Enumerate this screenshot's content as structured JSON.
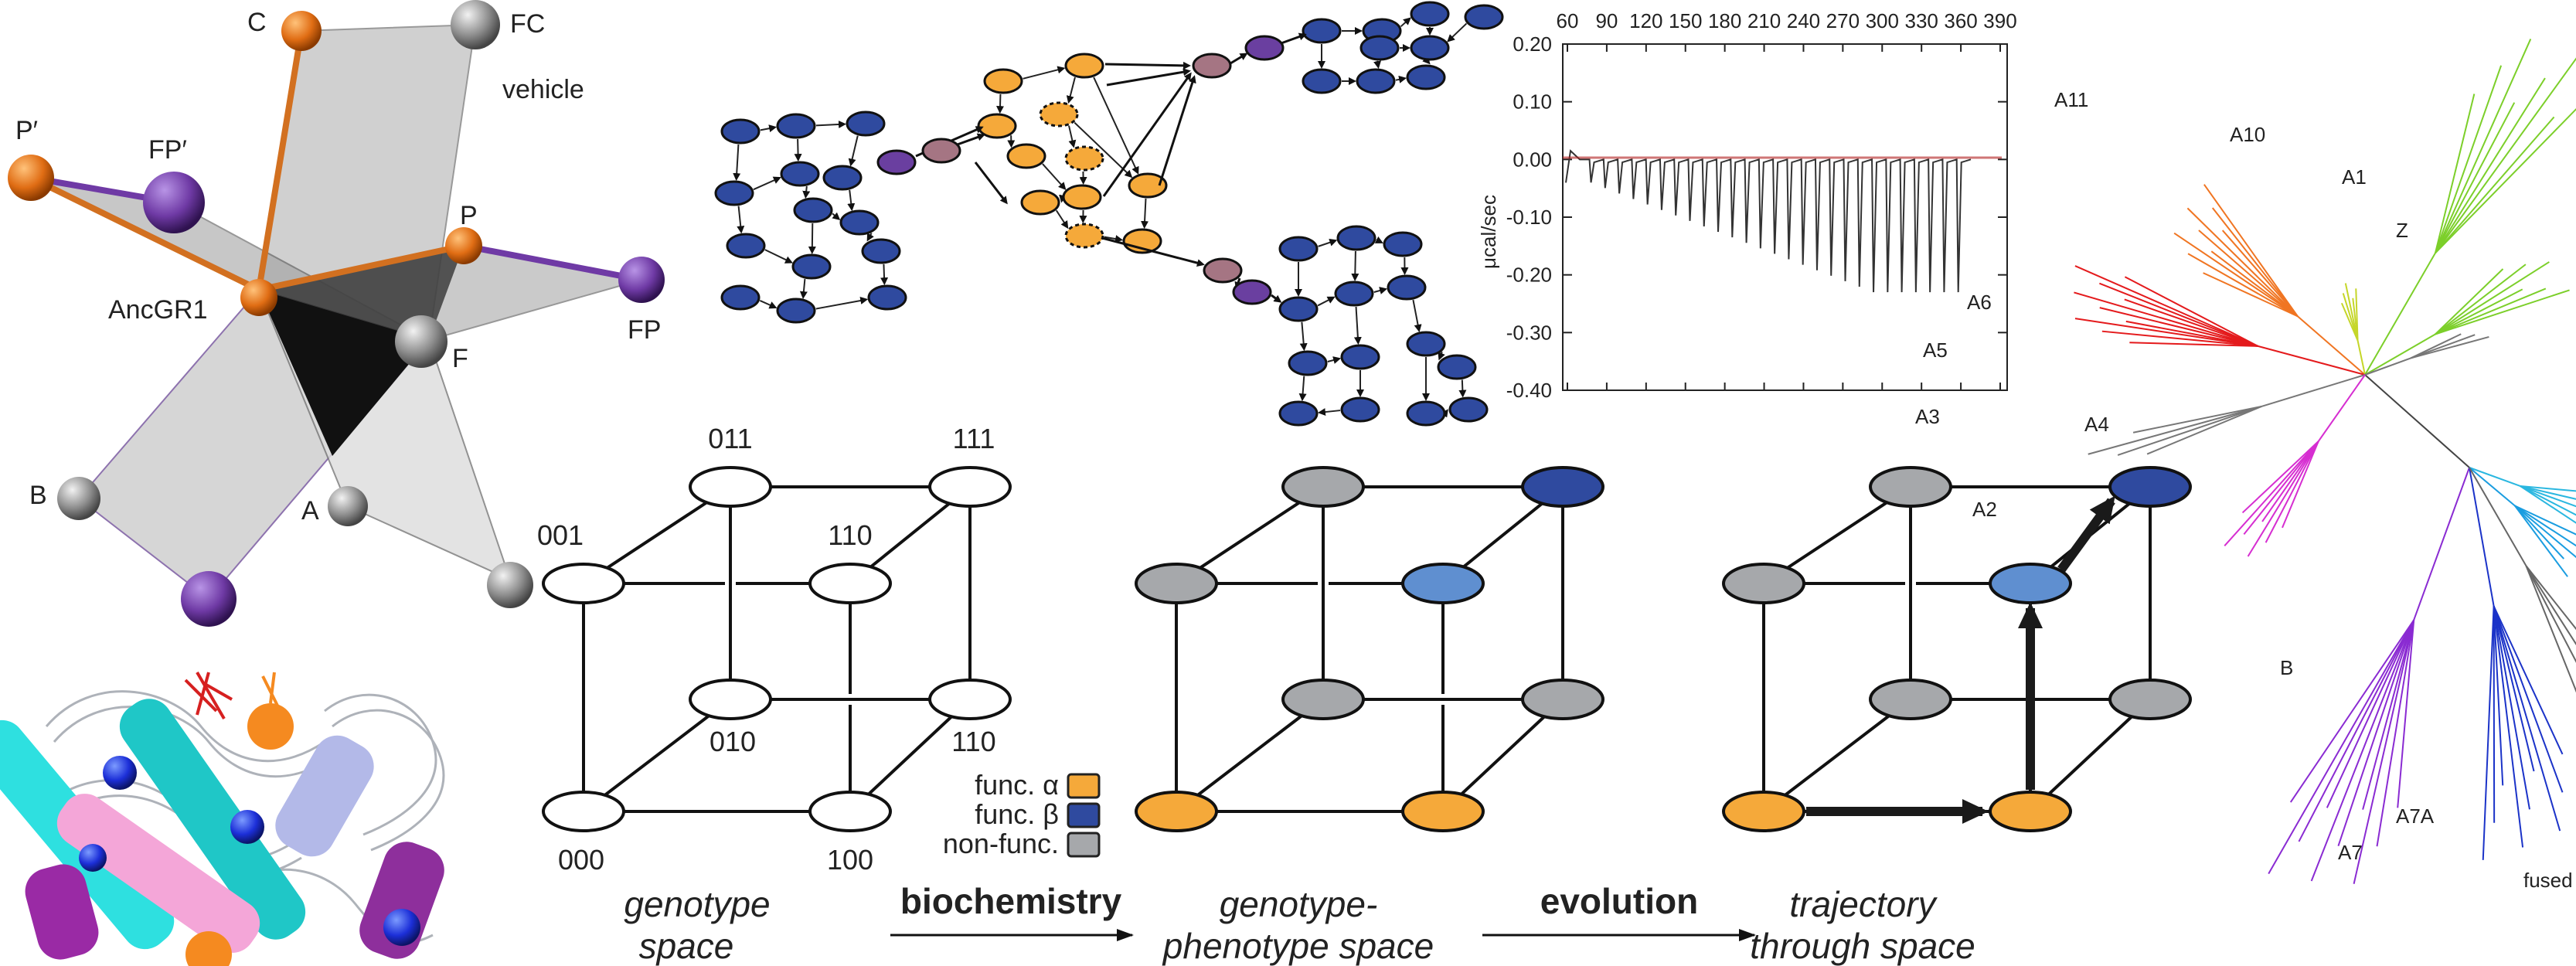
{
  "colors": {
    "orange": "#f5a93a",
    "dark_blue": "#2f4a9f",
    "light_blue": "#5f8fd0",
    "gray": "#a6a8ab",
    "purple": "#6a3fa0",
    "mauve": "#a57583",
    "sphere_orange": "#e06d14",
    "sphere_purple": "#6f3aa5",
    "red_branch": "#e41a1c",
    "orange_branch": "#f07522",
    "yellow_branch": "#c5d629",
    "green_branch": "#7ccf2a",
    "cyan_branch": "#2ab7e0",
    "magenta_branch": "#d62ed1",
    "violet_branch": "#8a2bd2",
    "navy_branch": "#1b33c8"
  },
  "structure_panel": {
    "labels": {
      "C": "C",
      "FC": "FC",
      "vehicle": "vehicle",
      "P_prime": "P′",
      "FP_prime": "FP′",
      "P": "P",
      "AncGR1": "AncGR1",
      "FP": "FP",
      "F": "F",
      "B": "B",
      "A": "A"
    }
  },
  "itc_panel": {
    "x_ticks": [
      "60",
      "90",
      "120",
      "150",
      "180",
      "210",
      "240",
      "270",
      "300",
      "330",
      "360",
      "390"
    ],
    "y_ticks": [
      "0.20",
      "0.10",
      "0.00",
      "-0.10",
      "-0.20",
      "-0.30",
      "-0.40"
    ],
    "y_label": "μcal/sec",
    "injection_count": 27
  },
  "cubes": {
    "genotype_labels": {
      "v011": "011",
      "v111": "111",
      "v001": "001",
      "v110_top": "110",
      "v010": "010",
      "v110_bottom": "110",
      "v000": "000",
      "v100": "100"
    },
    "captions": {
      "c1_line1": "genotype",
      "c1_line2": "space",
      "c2_line1": "genotype-",
      "c2_line2": "phenotype space",
      "c3_line1": "trajectory",
      "c3_line2": "through space"
    },
    "arrows": {
      "a1": "biochemistry",
      "a2": "evolution"
    },
    "legend": {
      "alpha": "func. α",
      "beta": "func. β",
      "nonfunc": "non-func."
    }
  },
  "tree": {
    "clade_labels": {
      "A11": "A11",
      "A10": "A10",
      "A1": "A1",
      "Z": "Z",
      "A6": "A6",
      "A5": "A5",
      "A4": "A4",
      "A3": "A3",
      "A2": "A2",
      "B": "B",
      "A7A": "A7A",
      "A7": "A7",
      "fused": "fused"
    }
  }
}
